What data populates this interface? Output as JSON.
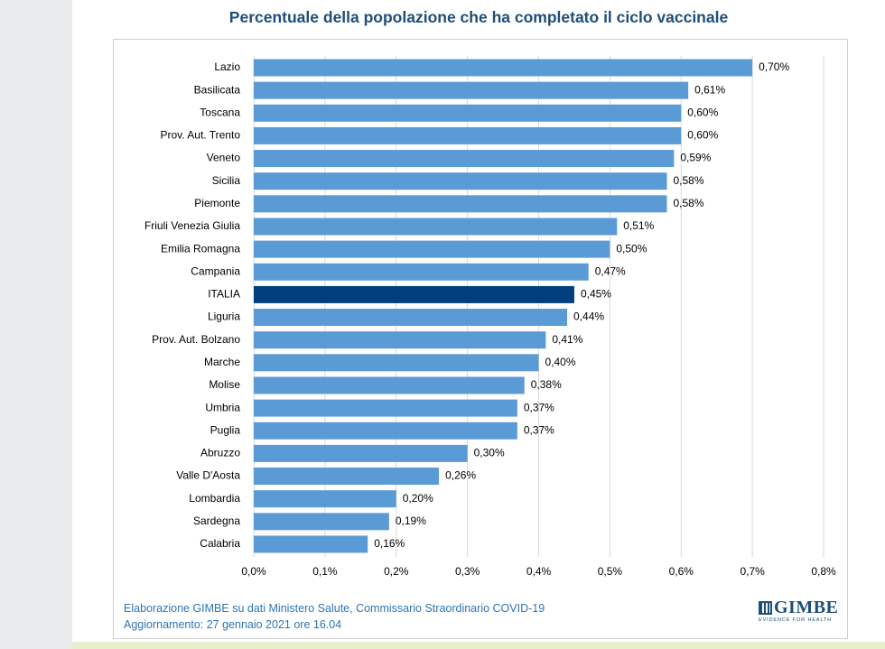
{
  "chart_data": {
    "type": "bar",
    "orientation": "horizontal",
    "title": "Percentuale della popolazione che ha completato il ciclo vaccinale",
    "categories": [
      "Lazio",
      "Basilicata",
      "Toscana",
      "Prov. Aut. Trento",
      "Veneto",
      "Sicilia",
      "Piemonte",
      "Friuli Venezia Giulia",
      "Emilia Romagna",
      "Campania",
      "ITALIA",
      "Liguria",
      "Prov. Aut. Bolzano",
      "Marche",
      "Molise",
      "Umbria",
      "Puglia",
      "Abruzzo",
      "Valle D'Aosta",
      "Lombardia",
      "Sardegna",
      "Calabria"
    ],
    "values": [
      0.7,
      0.61,
      0.6,
      0.6,
      0.59,
      0.58,
      0.58,
      0.51,
      0.5,
      0.47,
      0.45,
      0.44,
      0.41,
      0.4,
      0.38,
      0.37,
      0.37,
      0.3,
      0.26,
      0.2,
      0.19,
      0.16
    ],
    "value_labels": [
      "0,70%",
      "0,61%",
      "0,60%",
      "0,60%",
      "0,59%",
      "0,58%",
      "0,58%",
      "0,51%",
      "0,50%",
      "0,47%",
      "0,45%",
      "0,44%",
      "0,41%",
      "0,40%",
      "0,38%",
      "0,37%",
      "0,37%",
      "0,30%",
      "0,26%",
      "0,20%",
      "0,19%",
      "0,16%"
    ],
    "highlight": "ITALIA",
    "xlim": [
      0,
      0.8
    ],
    "xticks": [
      0,
      0.1,
      0.2,
      0.3,
      0.4,
      0.5,
      0.6,
      0.7,
      0.8
    ],
    "xtick_labels": [
      "0,0%",
      "0,1%",
      "0,2%",
      "0,3%",
      "0,4%",
      "0,5%",
      "0,6%",
      "0,7%",
      "0,8%"
    ],
    "xlabel": "",
    "ylabel": "",
    "grid": "vertical",
    "legend": "none",
    "colors": {
      "bar": "#5b9bd5",
      "highlight": "#003f7f",
      "grid": "#d9d9d9",
      "title": "#1f4e79",
      "source": "#2e75b6"
    }
  },
  "source": {
    "line1": "Elaborazione GIMBE su dati Ministero Salute, Commissario Straordinario COVID-19",
    "line2": "Aggiornamento: 27 gennaio 2021 ore 16.04"
  },
  "logo": {
    "name": "GIMBE",
    "tagline": "EVIDENCE FOR HEALTH"
  }
}
